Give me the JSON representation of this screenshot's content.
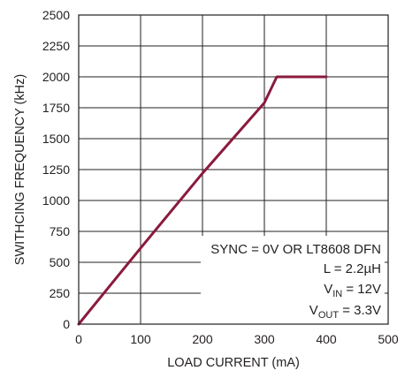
{
  "chart_data": {
    "type": "line",
    "title": "",
    "xlabel": "LOAD CURRENT (mA)",
    "ylabel": "SWITHCING FREQUENCY (kHz)",
    "xlim": [
      0,
      500
    ],
    "ylim": [
      0,
      2500
    ],
    "xticks": [
      "0",
      "100",
      "200",
      "300",
      "400",
      "500"
    ],
    "yticks": [
      "0",
      "250",
      "500",
      "750",
      "1000",
      "1250",
      "1500",
      "1750",
      "2000",
      "2250",
      "2500"
    ],
    "grid": true,
    "series": [
      {
        "color": "#8b1a3c",
        "x": [
          0,
          100,
          200,
          300,
          320,
          400
        ],
        "y": [
          0,
          615,
          1220,
          1790,
          2000,
          2000
        ]
      }
    ],
    "annotations": {
      "line1": "SYNC = 0V OR LT8608 DFN",
      "line2": "L = 2.2µH",
      "line3_main": "V",
      "line3_sub": "IN",
      "line3_rest": " = 12V",
      "line4_main": "V",
      "line4_sub": "OUT",
      "line4_rest": " = 3.3V"
    }
  }
}
